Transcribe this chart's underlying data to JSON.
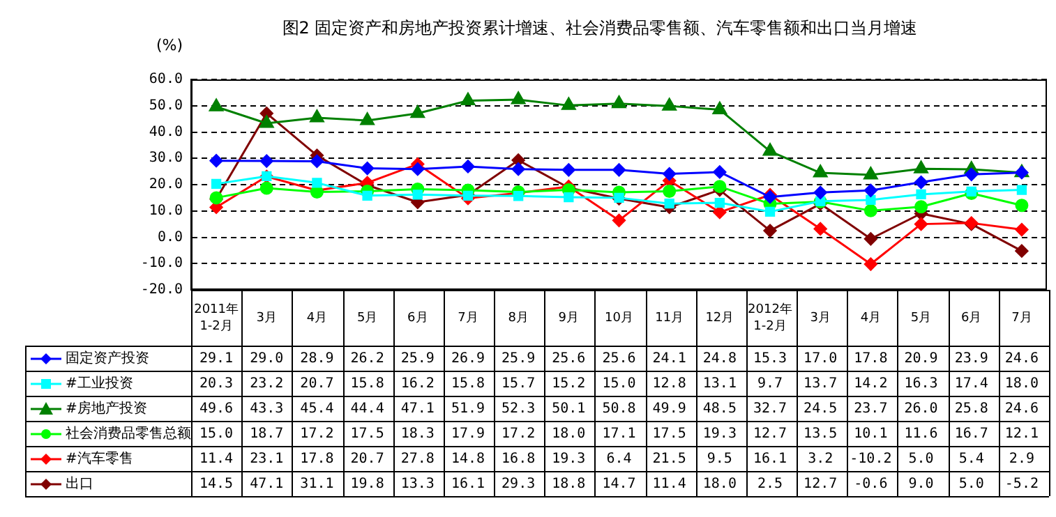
{
  "chart_data": {
    "type": "line",
    "title": "图2 固定资产和房地产投资累计增速、社会消费品零售额、汽车零售额和出口当月增速",
    "ylabel": "(%)",
    "categories": [
      "2011年1-2月",
      "3月",
      "4月",
      "5月",
      "6月",
      "7月",
      "8月",
      "9月",
      "10月",
      "11月",
      "12月",
      "2012年1-2月",
      "3月",
      "4月",
      "5月",
      "6月",
      "7月"
    ],
    "series": [
      {
        "name": "固定资产投资",
        "color": "#0000ff",
        "marker": "diamond",
        "values": [
          29.1,
          29.0,
          28.9,
          26.2,
          25.9,
          26.9,
          25.9,
          25.6,
          25.6,
          24.1,
          24.8,
          15.3,
          17.0,
          17.8,
          20.9,
          23.9,
          24.6
        ],
        "value_labels": [
          "29.1",
          "29.0",
          "28.9",
          "26.2",
          "25.9",
          "26.9",
          "25.9",
          "25.6",
          "25.6",
          "24.1",
          "24.8",
          "15.3",
          "17.0",
          "17.8",
          "20.9",
          "23.9",
          "24.6"
        ]
      },
      {
        "name": "#工业投资",
        "color": "#00ffff",
        "marker": "square",
        "values": [
          20.3,
          23.2,
          20.7,
          15.8,
          16.2,
          15.8,
          15.7,
          15.2,
          15.0,
          12.8,
          13.1,
          9.7,
          13.7,
          14.2,
          16.3,
          17.4,
          18.0
        ],
        "value_labels": [
          "20.3",
          "23.2",
          "20.7",
          "15.8",
          "16.2",
          "15.8",
          "15.7",
          "15.2",
          "15.0",
          "12.8",
          "13.1",
          "9.7",
          "13.7",
          "14.2",
          "16.3",
          "17.4",
          "18.0"
        ]
      },
      {
        "name": "#房地产投资",
        "color": "#008000",
        "marker": "triangle",
        "values": [
          49.6,
          43.3,
          45.4,
          44.4,
          47.1,
          51.9,
          52.3,
          50.1,
          50.8,
          49.9,
          48.5,
          32.7,
          24.5,
          23.7,
          26.0,
          25.8,
          24.6
        ],
        "value_labels": [
          "49.6",
          "43.3",
          "45.4",
          "44.4",
          "47.1",
          "51.9",
          "52.3",
          "50.1",
          "50.8",
          "49.9",
          "48.5",
          "32.7",
          "24.5",
          "23.7",
          "26.0",
          "25.8",
          "24.6"
        ]
      },
      {
        "name": "社会消费品零售总额",
        "color": "#00ff00",
        "marker": "circle",
        "values": [
          15.0,
          18.7,
          17.2,
          17.5,
          18.3,
          17.9,
          17.2,
          18.0,
          17.1,
          17.5,
          19.3,
          12.7,
          13.5,
          10.1,
          11.6,
          16.7,
          12.1
        ],
        "value_labels": [
          "15.0",
          "18.7",
          "17.2",
          "17.5",
          "18.3",
          "17.9",
          "17.2",
          "18.0",
          "17.1",
          "17.5",
          "19.3",
          "12.7",
          "13.5",
          "10.1",
          "11.6",
          "16.7",
          "12.1"
        ]
      },
      {
        "name": "#汽车零售",
        "color": "#ff0000",
        "marker": "diamond",
        "values": [
          11.4,
          23.1,
          17.8,
          20.7,
          27.8,
          14.8,
          16.8,
          19.3,
          6.4,
          21.5,
          9.5,
          16.1,
          3.2,
          -10.2,
          5.0,
          5.4,
          2.9
        ],
        "value_labels": [
          "11.4",
          "23.1",
          "17.8",
          "20.7",
          "27.8",
          "14.8",
          "16.8",
          "19.3",
          "6.4",
          "21.5",
          "9.5",
          "16.1",
          "3.2",
          "-10.2",
          "5.0",
          "5.4",
          "2.9"
        ]
      },
      {
        "name": "出口",
        "color": "#800000",
        "marker": "diamond",
        "values": [
          14.5,
          47.1,
          31.1,
          19.8,
          13.3,
          16.1,
          29.3,
          18.8,
          14.7,
          11.4,
          18.0,
          2.5,
          12.7,
          -0.6,
          9.0,
          5.0,
          -5.2
        ],
        "value_labels": [
          "14.5",
          "47.1",
          "31.1",
          "19.8",
          "13.3",
          "16.1",
          "29.3",
          "18.8",
          "14.7",
          "11.4",
          "18.0",
          "2.5",
          "12.7",
          "-0.6",
          "9.0",
          "5.0",
          "-5.2"
        ]
      }
    ],
    "ylim": [
      -20,
      60
    ],
    "yticks": [
      {
        "value": -20,
        "label": "-20.0"
      },
      {
        "value": -10,
        "label": "-10.0"
      },
      {
        "value": 0,
        "label": "0.0"
      },
      {
        "value": 10,
        "label": "10.0"
      },
      {
        "value": 20,
        "label": "20.0"
      },
      {
        "value": 30,
        "label": "30.0"
      },
      {
        "value": 40,
        "label": "40.0"
      },
      {
        "value": 50,
        "label": "50.0"
      },
      {
        "value": 60,
        "label": "60.0"
      }
    ],
    "grid": "y",
    "line_style": "solid",
    "legend": "bottom left"
  }
}
